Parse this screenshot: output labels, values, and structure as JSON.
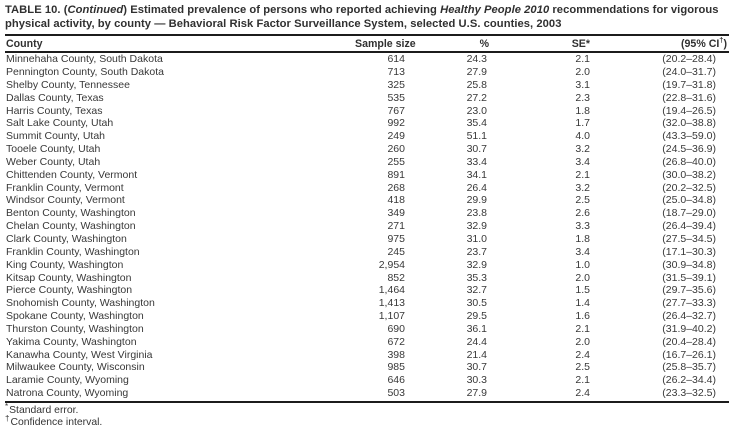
{
  "table": {
    "title": {
      "seg1": "TABLE 10. (",
      "seg2_italic": "Continued",
      "seg3": ") Estimated prevalence of persons who reported achieving ",
      "seg4_italic": "Healthy People 2010",
      "seg5": " recommendations for vigorous physical activity, by county — Behavioral Risk Factor Surveillance System, selected U.S. counties, 2003"
    },
    "columns": {
      "county": "County",
      "sample_size": "Sample size",
      "pct": "%",
      "se": "SE*",
      "ci_prefix": "(95% CI",
      "ci_sup": "†",
      "ci_suffix": ")"
    },
    "rows": [
      {
        "county": "Minnehaha County, South Dakota",
        "sample_size": "614",
        "pct": "24.3",
        "se": "2.1",
        "ci": "(20.2–28.4)"
      },
      {
        "county": "Pennington County, South Dakota",
        "sample_size": "713",
        "pct": "27.9",
        "se": "2.0",
        "ci": "(24.0–31.7)"
      },
      {
        "county": "Shelby County, Tennessee",
        "sample_size": "325",
        "pct": "25.8",
        "se": "3.1",
        "ci": "(19.7–31.8)"
      },
      {
        "county": "Dallas County, Texas",
        "sample_size": "535",
        "pct": "27.2",
        "se": "2.3",
        "ci": "(22.8–31.6)"
      },
      {
        "county": "Harris County, Texas",
        "sample_size": "767",
        "pct": "23.0",
        "se": "1.8",
        "ci": "(19.4–26.5)"
      },
      {
        "county": "Salt Lake County, Utah",
        "sample_size": "992",
        "pct": "35.4",
        "se": "1.7",
        "ci": "(32.0–38.8)"
      },
      {
        "county": "Summit County, Utah",
        "sample_size": "249",
        "pct": "51.1",
        "se": "4.0",
        "ci": "(43.3–59.0)"
      },
      {
        "county": "Tooele County, Utah",
        "sample_size": "260",
        "pct": "30.7",
        "se": "3.2",
        "ci": "(24.5–36.9)"
      },
      {
        "county": "Weber County, Utah",
        "sample_size": "255",
        "pct": "33.4",
        "se": "3.4",
        "ci": "(26.8–40.0)"
      },
      {
        "county": "Chittenden County, Vermont",
        "sample_size": "891",
        "pct": "34.1",
        "se": "2.1",
        "ci": "(30.0–38.2)"
      },
      {
        "county": "Franklin County, Vermont",
        "sample_size": "268",
        "pct": "26.4",
        "se": "3.2",
        "ci": "(20.2–32.5)"
      },
      {
        "county": "Windsor County, Vermont",
        "sample_size": "418",
        "pct": "29.9",
        "se": "2.5",
        "ci": "(25.0–34.8)"
      },
      {
        "county": "Benton County, Washington",
        "sample_size": "349",
        "pct": "23.8",
        "se": "2.6",
        "ci": "(18.7–29.0)"
      },
      {
        "county": "Chelan County, Washington",
        "sample_size": "271",
        "pct": "32.9",
        "se": "3.3",
        "ci": "(26.4–39.4)"
      },
      {
        "county": "Clark County, Washington",
        "sample_size": "975",
        "pct": "31.0",
        "se": "1.8",
        "ci": "(27.5–34.5)"
      },
      {
        "county": "Franklin County, Washington",
        "sample_size": "245",
        "pct": "23.7",
        "se": "3.4",
        "ci": "(17.1–30.3)"
      },
      {
        "county": "King County, Washington",
        "sample_size": "2,954",
        "pct": "32.9",
        "se": "1.0",
        "ci": "(30.9–34.8)"
      },
      {
        "county": "Kitsap County, Washington",
        "sample_size": "852",
        "pct": "35.3",
        "se": "2.0",
        "ci": "(31.5–39.1)"
      },
      {
        "county": "Pierce County, Washington",
        "sample_size": "1,464",
        "pct": "32.7",
        "se": "1.5",
        "ci": "(29.7–35.6)"
      },
      {
        "county": "Snohomish County, Washington",
        "sample_size": "1,413",
        "pct": "30.5",
        "se": "1.4",
        "ci": "(27.7–33.3)"
      },
      {
        "county": "Spokane County, Washington",
        "sample_size": "1,107",
        "pct": "29.5",
        "se": "1.6",
        "ci": "(26.4–32.7)"
      },
      {
        "county": "Thurston County, Washington",
        "sample_size": "690",
        "pct": "36.1",
        "se": "2.1",
        "ci": "(31.9–40.2)"
      },
      {
        "county": "Yakima County, Washington",
        "sample_size": "672",
        "pct": "24.4",
        "se": "2.0",
        "ci": "(20.4–28.4)"
      },
      {
        "county": "Kanawha County, West Virginia",
        "sample_size": "398",
        "pct": "21.4",
        "se": "2.4",
        "ci": "(16.7–26.1)"
      },
      {
        "county": "Milwaukee County, Wisconsin",
        "sample_size": "985",
        "pct": "30.7",
        "se": "2.5",
        "ci": "(25.8–35.7)"
      },
      {
        "county": "Laramie County, Wyoming",
        "sample_size": "646",
        "pct": "30.3",
        "se": "2.1",
        "ci": "(26.2–34.4)"
      },
      {
        "county": "Natrona County, Wyoming",
        "sample_size": "503",
        "pct": "27.9",
        "se": "2.4",
        "ci": "(23.3–32.5)"
      }
    ],
    "footnotes": [
      {
        "sup": "*",
        "text": "Standard error."
      },
      {
        "sup": "†",
        "text": "Confidence interval."
      }
    ]
  }
}
